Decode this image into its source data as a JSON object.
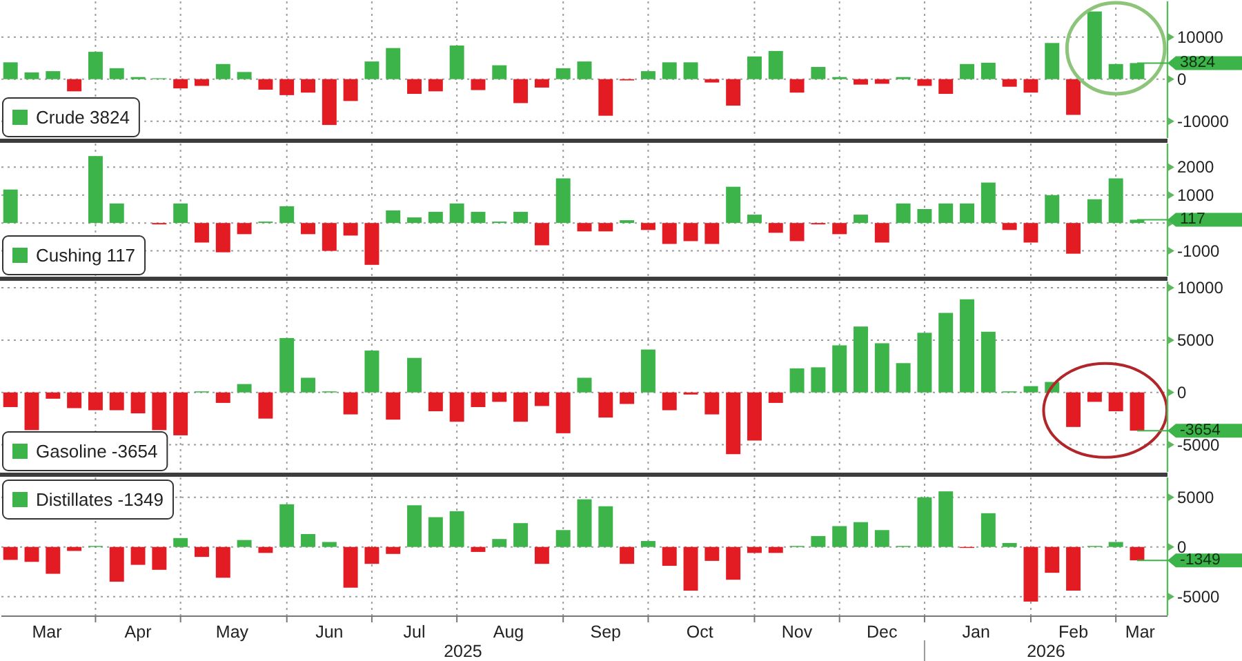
{
  "chart_data": [
    {
      "type": "bar",
      "tick_labels": "y",
      "grid": true,
      "legend": "bottom left",
      "x": [
        "2025-03-07",
        "2025-03-14",
        "2025-03-21",
        "2025-03-28",
        "2025-04-04",
        "2025-04-11",
        "2025-04-18",
        "2025-04-25",
        "2025-05-02",
        "2025-05-09",
        "2025-05-16",
        "2025-05-23",
        "2025-05-30",
        "2025-06-06",
        "2025-06-13",
        "2025-06-20",
        "2025-06-27",
        "2025-07-04",
        "2025-07-11",
        "2025-07-18",
        "2025-07-25",
        "2025-08-01",
        "2025-08-08",
        "2025-08-15",
        "2025-08-22",
        "2025-08-29",
        "2025-09-05",
        "2025-09-12",
        "2025-09-19",
        "2025-09-26",
        "2025-10-03",
        "2025-10-10",
        "2025-10-17",
        "2025-10-24",
        "2025-10-31",
        "2025-11-07",
        "2025-11-14",
        "2025-11-21",
        "2025-11-28",
        "2025-12-05",
        "2025-12-12",
        "2025-12-19",
        "2025-12-26",
        "2026-01-02",
        "2026-01-09",
        "2026-01-16",
        "2026-01-23",
        "2026-01-30",
        "2026-02-06",
        "2026-02-13",
        "2026-02-20",
        "2026-02-27",
        "2026-03-06",
        "2026-03-13"
      ],
      "xlim": [
        "2025-03-04",
        "2026-03-23"
      ],
      "xticks": [
        {
          "value": "2025-04-04",
          "label": null
        },
        {
          "value": "2025-05-02",
          "label": null
        },
        {
          "value": "2025-06-06",
          "label": null
        },
        {
          "value": "2025-07-04",
          "label": null
        },
        {
          "value": "2025-08-01",
          "label": null
        },
        {
          "value": "2025-09-05",
          "label": null
        },
        {
          "value": "2025-10-03",
          "label": null
        },
        {
          "value": "2025-11-07",
          "label": null
        },
        {
          "value": "2025-12-05",
          "label": null
        },
        {
          "value": "2026-01-02",
          "label": null
        },
        {
          "value": "2026-02-06",
          "label": null
        },
        {
          "value": "2026-03-06",
          "label": null
        }
      ],
      "ylim": [
        -14000,
        18500
      ],
      "yticks": [
        -10000,
        0,
        10000
      ],
      "ref_lines": [
        {
          "axis": "y",
          "value": 3824,
          "label": "3824",
          "color": "#3cb449"
        }
      ],
      "series": [
        {
          "name": "Crude 3824",
          "color": "#3cb449",
          "values": [
            4000,
            1600,
            1900,
            -2900,
            6500,
            2600,
            500,
            200,
            -2200,
            -1600,
            3600,
            1700,
            -2500,
            -3800,
            -3200,
            -10900,
            -5200,
            4200,
            7400,
            -3500,
            -2900,
            8000,
            -2600,
            3300,
            -5700,
            -2000,
            2600,
            4200,
            -8700,
            -300,
            1900,
            4000,
            4000,
            -800,
            -6300,
            5400,
            6700,
            -3200,
            2900,
            500,
            -1300,
            -1100,
            500,
            -1600,
            -3500,
            3600,
            3900,
            -1800,
            -3200,
            8600,
            -8500,
            16100,
            3600,
            3824
          ],
          "colors": [
            "#3cb449",
            "#3cb449",
            "#3cb449",
            "#e31b23",
            "#3cb449",
            "#3cb449",
            "#3cb449",
            "#3cb449",
            "#e31b23",
            "#e31b23",
            "#3cb449",
            "#3cb449",
            "#e31b23",
            "#e31b23",
            "#e31b23",
            "#e31b23",
            "#e31b23",
            "#3cb449",
            "#3cb449",
            "#e31b23",
            "#e31b23",
            "#3cb449",
            "#e31b23",
            "#3cb449",
            "#e31b23",
            "#e31b23",
            "#3cb449",
            "#3cb449",
            "#e31b23",
            "#e31b23",
            "#3cb449",
            "#3cb449",
            "#3cb449",
            "#e31b23",
            "#e31b23",
            "#3cb449",
            "#3cb449",
            "#e31b23",
            "#3cb449",
            "#3cb449",
            "#e31b23",
            "#e31b23",
            "#3cb449",
            "#e31b23",
            "#e31b23",
            "#3cb449",
            "#3cb449",
            "#e31b23",
            "#e31b23",
            "#3cb449",
            "#e31b23",
            "#3cb449",
            "#3cb449",
            "#3cb449"
          ]
        }
      ]
    },
    {
      "type": "bar",
      "tick_labels": "y",
      "grid": true,
      "legend": "bottom left",
      "x": [
        "2025-03-07",
        "2025-03-14",
        "2025-03-21",
        "2025-03-28",
        "2025-04-04",
        "2025-04-11",
        "2025-04-18",
        "2025-04-25",
        "2025-05-02",
        "2025-05-09",
        "2025-05-16",
        "2025-05-23",
        "2025-05-30",
        "2025-06-06",
        "2025-06-13",
        "2025-06-20",
        "2025-06-27",
        "2025-07-04",
        "2025-07-11",
        "2025-07-18",
        "2025-07-25",
        "2025-08-01",
        "2025-08-08",
        "2025-08-15",
        "2025-08-22",
        "2025-08-29",
        "2025-09-05",
        "2025-09-12",
        "2025-09-19",
        "2025-09-26",
        "2025-10-03",
        "2025-10-10",
        "2025-10-17",
        "2025-10-24",
        "2025-10-31",
        "2025-11-07",
        "2025-11-14",
        "2025-11-21",
        "2025-11-28",
        "2025-12-05",
        "2025-12-12",
        "2025-12-19",
        "2025-12-26",
        "2026-01-02",
        "2026-01-09",
        "2026-01-16",
        "2026-01-23",
        "2026-01-30",
        "2026-02-06",
        "2026-02-13",
        "2026-02-20",
        "2026-02-27",
        "2026-03-06",
        "2026-03-13"
      ],
      "xlim": [
        "2025-03-04",
        "2026-03-23"
      ],
      "xticks": [
        {
          "value": "2025-04-04",
          "label": null
        },
        {
          "value": "2025-05-02",
          "label": null
        },
        {
          "value": "2025-06-06",
          "label": null
        },
        {
          "value": "2025-07-04",
          "label": null
        },
        {
          "value": "2025-08-01",
          "label": null
        },
        {
          "value": "2025-09-05",
          "label": null
        },
        {
          "value": "2025-10-03",
          "label": null
        },
        {
          "value": "2025-11-07",
          "label": null
        },
        {
          "value": "2025-12-05",
          "label": null
        },
        {
          "value": "2026-01-02",
          "label": null
        },
        {
          "value": "2026-02-06",
          "label": null
        },
        {
          "value": "2026-03-06",
          "label": null
        }
      ],
      "ylim": [
        -1900,
        2850
      ],
      "yticks": [
        -1000,
        {
          "value": 0,
          "label": null
        },
        1000,
        2000
      ],
      "ref_lines": [
        {
          "axis": "y",
          "value": 117,
          "label": "117",
          "color": "#3cb449"
        }
      ],
      "series": [
        {
          "name": "Cushing 117",
          "color": "#3cb449",
          "values": [
            1200,
            null,
            null,
            null,
            2400,
            700,
            null,
            -50,
            700,
            -700,
            -1050,
            -400,
            50,
            600,
            -400,
            -1000,
            -450,
            -1500,
            450,
            200,
            400,
            700,
            400,
            50,
            400,
            -800,
            1600,
            -300,
            -300,
            100,
            -250,
            -750,
            -650,
            -750,
            1300,
            300,
            -350,
            -650,
            -50,
            -400,
            300,
            -700,
            700,
            500,
            700,
            700,
            1450,
            -250,
            -700,
            1000,
            -1100,
            850,
            1600,
            117
          ],
          "colors": [
            "#3cb449",
            null,
            null,
            null,
            "#3cb449",
            "#3cb449",
            null,
            "#e31b23",
            "#3cb449",
            "#e31b23",
            "#e31b23",
            "#e31b23",
            "#3cb449",
            "#3cb449",
            "#e31b23",
            "#e31b23",
            "#e31b23",
            "#e31b23",
            "#3cb449",
            "#3cb449",
            "#3cb449",
            "#3cb449",
            "#3cb449",
            "#3cb449",
            "#3cb449",
            "#e31b23",
            "#3cb449",
            "#e31b23",
            "#e31b23",
            "#3cb449",
            "#e31b23",
            "#e31b23",
            "#e31b23",
            "#e31b23",
            "#3cb449",
            "#3cb449",
            "#e31b23",
            "#e31b23",
            "#e31b23",
            "#e31b23",
            "#3cb449",
            "#e31b23",
            "#3cb449",
            "#3cb449",
            "#3cb449",
            "#3cb449",
            "#3cb449",
            "#e31b23",
            "#e31b23",
            "#3cb449",
            "#e31b23",
            "#3cb449",
            "#3cb449",
            "#3cb449"
          ]
        }
      ]
    },
    {
      "type": "bar",
      "tick_labels": "y",
      "grid": true,
      "legend": "bottom left",
      "x": [
        "2025-03-07",
        "2025-03-14",
        "2025-03-21",
        "2025-03-28",
        "2025-04-04",
        "2025-04-11",
        "2025-04-18",
        "2025-04-25",
        "2025-05-02",
        "2025-05-09",
        "2025-05-16",
        "2025-05-23",
        "2025-05-30",
        "2025-06-06",
        "2025-06-13",
        "2025-06-20",
        "2025-06-27",
        "2025-07-04",
        "2025-07-11",
        "2025-07-18",
        "2025-07-25",
        "2025-08-01",
        "2025-08-08",
        "2025-08-15",
        "2025-08-22",
        "2025-08-29",
        "2025-09-05",
        "2025-09-12",
        "2025-09-19",
        "2025-09-26",
        "2025-10-03",
        "2025-10-10",
        "2025-10-17",
        "2025-10-24",
        "2025-10-31",
        "2025-11-07",
        "2025-11-14",
        "2025-11-21",
        "2025-11-28",
        "2025-12-05",
        "2025-12-12",
        "2025-12-19",
        "2025-12-26",
        "2026-01-02",
        "2026-01-09",
        "2026-01-16",
        "2026-01-23",
        "2026-01-30",
        "2026-02-06",
        "2026-02-13",
        "2026-02-20",
        "2026-02-27",
        "2026-03-06",
        "2026-03-13"
      ],
      "xlim": [
        "2025-03-04",
        "2026-03-23"
      ],
      "xticks": [
        {
          "value": "2025-04-04",
          "label": null
        },
        {
          "value": "2025-05-02",
          "label": null
        },
        {
          "value": "2025-06-06",
          "label": null
        },
        {
          "value": "2025-07-04",
          "label": null
        },
        {
          "value": "2025-08-01",
          "label": null
        },
        {
          "value": "2025-09-05",
          "label": null
        },
        {
          "value": "2025-10-03",
          "label": null
        },
        {
          "value": "2025-11-07",
          "label": null
        },
        {
          "value": "2025-12-05",
          "label": null
        },
        {
          "value": "2026-01-02",
          "label": null
        },
        {
          "value": "2026-02-06",
          "label": null
        },
        {
          "value": "2026-03-06",
          "label": null
        }
      ],
      "ylim": [
        -7600,
        10600
      ],
      "yticks": [
        -5000,
        0,
        5000,
        10000
      ],
      "ref_lines": [
        {
          "axis": "y",
          "value": -3654,
          "label": "-3654",
          "color": "#3cb449"
        }
      ],
      "series": [
        {
          "name": "Gasoline -3654",
          "color": "#3cb449",
          "values": [
            -1400,
            -3600,
            -600,
            -1500,
            -1700,
            -1700,
            -2000,
            -3600,
            -4100,
            100,
            -1000,
            800,
            -2500,
            5200,
            1400,
            100,
            -2100,
            4000,
            -2600,
            3300,
            -1800,
            -2800,
            -1400,
            -900,
            -2800,
            -1300,
            -3900,
            1400,
            -2400,
            -1100,
            4100,
            -1700,
            -200,
            -2100,
            -5900,
            -4600,
            -1000,
            2300,
            2400,
            4500,
            6300,
            4700,
            2800,
            5700,
            7600,
            8900,
            5800,
            100,
            600,
            1000,
            -3300,
            -900,
            -1800,
            -3654
          ],
          "colors": [
            "#e31b23",
            "#e31b23",
            "#e31b23",
            "#e31b23",
            "#e31b23",
            "#e31b23",
            "#e31b23",
            "#e31b23",
            "#e31b23",
            "#3cb449",
            "#e31b23",
            "#3cb449",
            "#e31b23",
            "#3cb449",
            "#3cb449",
            "#3cb449",
            "#e31b23",
            "#3cb449",
            "#e31b23",
            "#3cb449",
            "#e31b23",
            "#e31b23",
            "#e31b23",
            "#e31b23",
            "#e31b23",
            "#e31b23",
            "#e31b23",
            "#3cb449",
            "#e31b23",
            "#e31b23",
            "#3cb449",
            "#e31b23",
            "#e31b23",
            "#e31b23",
            "#e31b23",
            "#e31b23",
            "#e31b23",
            "#3cb449",
            "#3cb449",
            "#3cb449",
            "#3cb449",
            "#3cb449",
            "#3cb449",
            "#3cb449",
            "#3cb449",
            "#3cb449",
            "#3cb449",
            "#3cb449",
            "#3cb449",
            "#3cb449",
            "#e31b23",
            "#e31b23",
            "#e31b23",
            "#e31b23"
          ]
        }
      ]
    },
    {
      "type": "bar",
      "grid": true,
      "legend": "top left",
      "x": [
        "2025-03-07",
        "2025-03-14",
        "2025-03-21",
        "2025-03-28",
        "2025-04-04",
        "2025-04-11",
        "2025-04-18",
        "2025-04-25",
        "2025-05-02",
        "2025-05-09",
        "2025-05-16",
        "2025-05-23",
        "2025-05-30",
        "2025-06-06",
        "2025-06-13",
        "2025-06-20",
        "2025-06-27",
        "2025-07-04",
        "2025-07-11",
        "2025-07-18",
        "2025-07-25",
        "2025-08-01",
        "2025-08-08",
        "2025-08-15",
        "2025-08-22",
        "2025-08-29",
        "2025-09-05",
        "2025-09-12",
        "2025-09-19",
        "2025-09-26",
        "2025-10-03",
        "2025-10-10",
        "2025-10-17",
        "2025-10-24",
        "2025-10-31",
        "2025-11-07",
        "2025-11-14",
        "2025-11-21",
        "2025-11-28",
        "2025-12-05",
        "2025-12-12",
        "2025-12-19",
        "2025-12-26",
        "2026-01-02",
        "2026-01-09",
        "2026-01-16",
        "2026-01-23",
        "2026-01-30",
        "2026-02-06",
        "2026-02-13",
        "2026-02-20",
        "2026-02-27",
        "2026-03-06",
        "2026-03-13"
      ],
      "xlim": [
        "2025-03-04",
        "2026-03-23"
      ],
      "xticks": [
        {
          "value": "2025-03-19",
          "label": "Mar"
        },
        {
          "value": "2025-04-04",
          "label": null
        },
        {
          "value": "2025-04-18",
          "label": "Apr"
        },
        {
          "value": "2025-05-02",
          "label": null
        },
        {
          "value": "2025-05-19",
          "label": "May"
        },
        {
          "value": "2025-06-06",
          "label": null
        },
        {
          "value": "2025-06-20",
          "label": "Jun"
        },
        {
          "value": "2025-07-04",
          "label": null
        },
        {
          "value": "2025-07-18",
          "label": "Jul"
        },
        {
          "value": "2025-08-01",
          "label": null
        },
        {
          "value": "2025-08-18",
          "label": "Aug"
        },
        {
          "value": "2025-09-05",
          "label": null
        },
        {
          "value": "2025-09-19",
          "label": "Sep"
        },
        {
          "value": "2025-10-03",
          "label": null
        },
        {
          "value": "2025-10-20",
          "label": "Oct"
        },
        {
          "value": "2025-11-07",
          "label": null
        },
        {
          "value": "2025-11-21",
          "label": "Nov"
        },
        {
          "value": "2025-12-05",
          "label": null
        },
        {
          "value": "2025-12-19",
          "label": "Dec"
        },
        {
          "value": "2026-01-02",
          "label": null
        },
        {
          "value": "2026-01-19",
          "label": "Jan"
        },
        {
          "value": "2026-02-06",
          "label": null
        },
        {
          "value": "2026-02-20",
          "label": "Feb"
        },
        {
          "value": "2026-03-06",
          "label": null
        },
        {
          "value": "2026-03-14",
          "label": "Mar"
        }
      ],
      "ylim": [
        -6900,
        7000
      ],
      "yticks": [
        -5000,
        0,
        5000
      ],
      "ref_lines": [
        {
          "axis": "y",
          "value": -1349,
          "label": "-1349",
          "color": "#3cb449"
        }
      ],
      "annotations": [
        "2025",
        "2026"
      ],
      "series": [
        {
          "name": "Distillates -1349",
          "color": "#3cb449",
          "values": [
            -1300,
            -1500,
            -2700,
            -400,
            100,
            -3500,
            -1800,
            -2300,
            900,
            -1000,
            -3100,
            700,
            -600,
            4300,
            1300,
            500,
            -4100,
            -1700,
            -700,
            4200,
            3000,
            3600,
            -500,
            800,
            2400,
            -1700,
            1700,
            4800,
            4100,
            -1700,
            600,
            -1900,
            -4400,
            -1400,
            -3300,
            -600,
            -600,
            100,
            1100,
            2100,
            2500,
            1700,
            100,
            5000,
            5600,
            -100,
            3400,
            400,
            -5500,
            -2600,
            -4400,
            100,
            500,
            -1349
          ],
          "colors": [
            "#e31b23",
            "#e31b23",
            "#e31b23",
            "#e31b23",
            "#3cb449",
            "#e31b23",
            "#e31b23",
            "#e31b23",
            "#3cb449",
            "#e31b23",
            "#e31b23",
            "#3cb449",
            "#e31b23",
            "#3cb449",
            "#3cb449",
            "#3cb449",
            "#e31b23",
            "#e31b23",
            "#e31b23",
            "#3cb449",
            "#3cb449",
            "#3cb449",
            "#e31b23",
            "#3cb449",
            "#3cb449",
            "#e31b23",
            "#3cb449",
            "#3cb449",
            "#3cb449",
            "#e31b23",
            "#3cb449",
            "#e31b23",
            "#e31b23",
            "#e31b23",
            "#e31b23",
            "#e31b23",
            "#e31b23",
            "#3cb449",
            "#3cb449",
            "#3cb449",
            "#3cb449",
            "#3cb449",
            "#3cb449",
            "#3cb449",
            "#3cb449",
            "#e31b23",
            "#3cb449",
            "#3cb449",
            "#e31b23",
            "#e31b23",
            "#e31b23",
            "#3cb449",
            "#3cb449",
            "#e31b23"
          ]
        }
      ]
    }
  ]
}
